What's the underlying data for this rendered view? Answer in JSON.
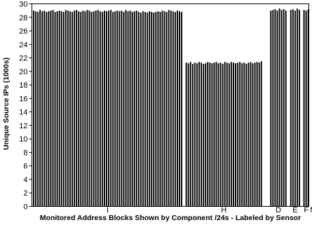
{
  "chart_data": {
    "type": "bar",
    "xlabel": "Monitored Address Blocks Shown by Component /24s - Labeled by Sensor",
    "ylabel": "Unique Source IPs (1000s)",
    "ylim": [
      0,
      30
    ],
    "yticks": [
      0,
      2,
      4,
      6,
      8,
      10,
      12,
      14,
      16,
      18,
      20,
      22,
      24,
      26,
      28,
      30
    ],
    "grid": false,
    "series": [
      {
        "sensor": "I",
        "bar_count": 70,
        "values": [
          29.0,
          28.9,
          28.8,
          29.1,
          28.9,
          29.0,
          28.8,
          28.9,
          29.0,
          29.1,
          28.8,
          28.9,
          29.0,
          28.9,
          28.8,
          29.1,
          29.0,
          28.9,
          28.8,
          29.0,
          29.1,
          28.9,
          28.8,
          29.0,
          28.9,
          29.1,
          29.0,
          28.8,
          28.9,
          29.0,
          29.1,
          28.9,
          28.8,
          29.0,
          28.9,
          29.0,
          29.1,
          28.8,
          28.9,
          29.0,
          28.9,
          29.0,
          28.8,
          29.1,
          28.9,
          29.0,
          28.8,
          28.9,
          29.0,
          28.8,
          28.7,
          28.9,
          28.8,
          28.7,
          28.9,
          28.8,
          28.7,
          28.8,
          28.9,
          28.8,
          29.0,
          28.9,
          28.8,
          29.1,
          29.0,
          28.9,
          28.8,
          29.0,
          28.9,
          28.8
        ]
      },
      {
        "sensor": "H",
        "bar_count": 36,
        "values": [
          21.3,
          21.2,
          21.4,
          21.1,
          21.3,
          21.2,
          21.4,
          21.3,
          21.1,
          21.2,
          21.4,
          21.3,
          21.2,
          21.3,
          21.4,
          21.2,
          21.3,
          21.1,
          21.4,
          21.3,
          21.2,
          21.4,
          21.3,
          21.2,
          21.3,
          21.4,
          21.2,
          21.3,
          21.1,
          21.3,
          21.4,
          21.2,
          21.3,
          21.4,
          21.3,
          21.5
        ]
      },
      {
        "sensor": "D",
        "bar_count": 8,
        "values": [
          29.0,
          29.1,
          29.2,
          29.0,
          29.3,
          29.1,
          29.2,
          29.0
        ]
      },
      {
        "sensor": "E",
        "bar_count": 5,
        "values": [
          29.1,
          29.2,
          29.0,
          29.3,
          29.1
        ]
      },
      {
        "sensor": "F",
        "bar_count": 3,
        "values": [
          29.1,
          29.0,
          29.2
        ]
      },
      {
        "sensor": "M",
        "bar_count": 0,
        "values": []
      }
    ]
  }
}
